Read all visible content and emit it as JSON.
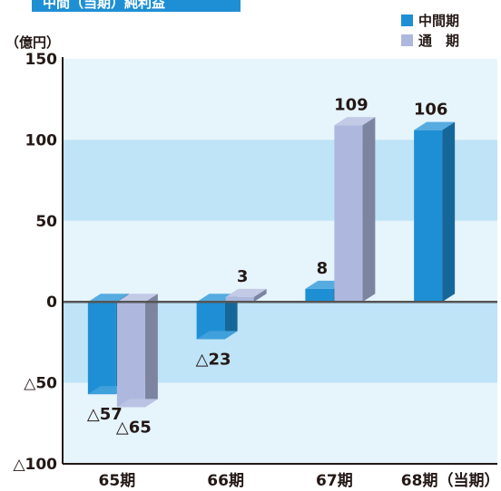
{
  "title": "中間（当期）純利益",
  "unit_label": "（億円）",
  "colors": {
    "interim": "#1e8fd5",
    "full_year": "#aeb8de",
    "band_light": "#e6f4fc",
    "band_dark": "#bfe3f7"
  },
  "chart_data": {
    "type": "bar",
    "categories": [
      "65期",
      "66期",
      "67期",
      "68期（当期）"
    ],
    "series": [
      {
        "name": "中間期",
        "values": [
          -57,
          -23,
          8,
          106
        ],
        "labels": [
          "△57",
          "△23",
          "8",
          "106"
        ]
      },
      {
        "name": "通　期",
        "values": [
          -65,
          3,
          109,
          null
        ],
        "labels": [
          "△65",
          "3",
          "109",
          ""
        ]
      }
    ],
    "yticks": [
      150,
      100,
      50,
      0,
      -50,
      -100
    ],
    "ytick_labels": [
      "150",
      "100",
      "50",
      "0",
      "△50",
      "△100"
    ],
    "ylim": [
      -100,
      150
    ],
    "legend_position": "top-right"
  }
}
